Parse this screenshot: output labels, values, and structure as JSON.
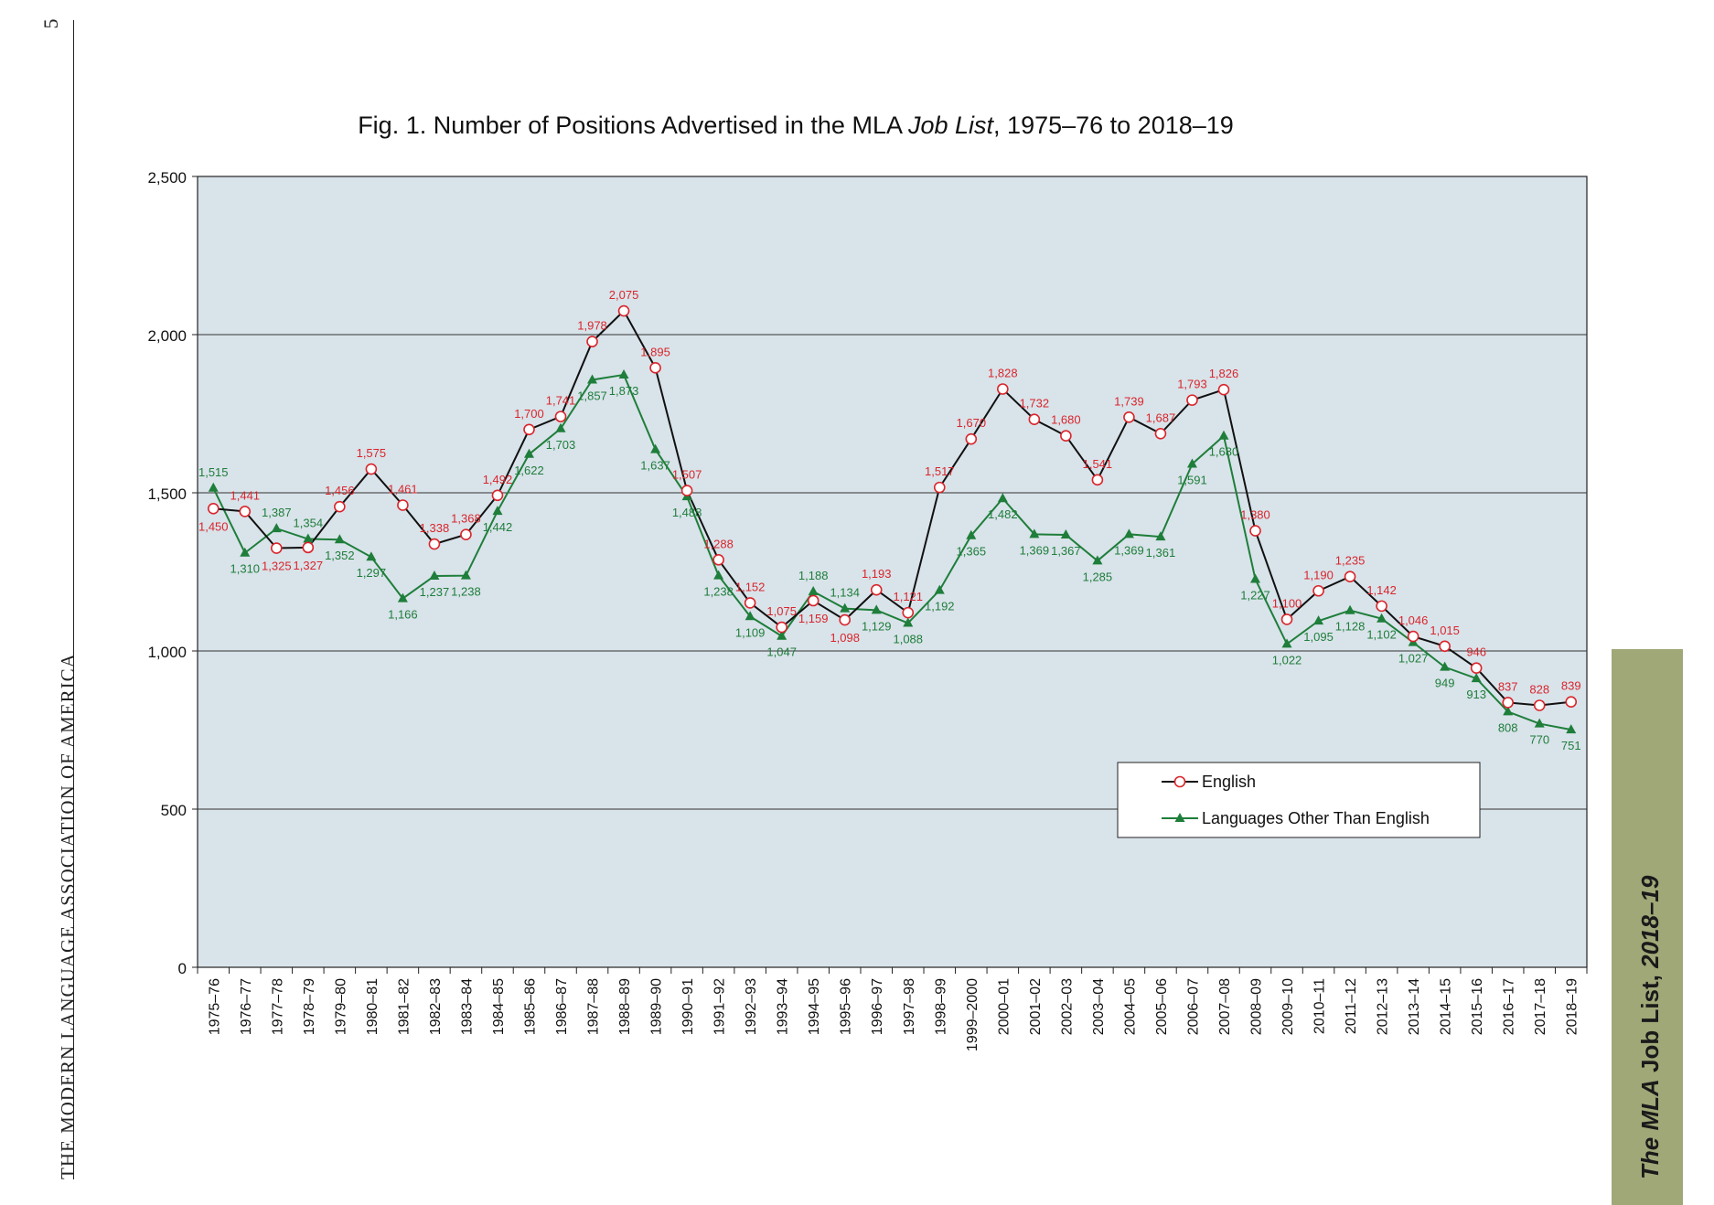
{
  "page": {
    "page_number": "5",
    "publisher": "THE MODERN LANGUAGE ASSOCIATION OF AMERICA",
    "side_tab": {
      "italic": "The MLA",
      "plain": " Job List, ",
      "italic2": "2018–19"
    },
    "colors": {
      "english": "#d9262c",
      "other": "#1e7e3a",
      "plot_bg": "#d9e3ea",
      "side_tab": "#a0a878"
    }
  },
  "chart_data": {
    "type": "line",
    "title": {
      "prefix": "Fig. 1. Number of Positions Advertised in the MLA ",
      "italic": "Job List",
      "suffix": ", 1975–76 to 2018–19"
    },
    "xlabel": "",
    "ylabel": "",
    "ylim": [
      0,
      2500
    ],
    "yticks": [
      "0",
      "500",
      "1,000",
      "1,500",
      "2,000",
      "2,500"
    ],
    "grid": true,
    "legend_position": "lower-right",
    "categories": [
      "1975–76",
      "1976–77",
      "1977–78",
      "1978–79",
      "1979–80",
      "1980–81",
      "1981–82",
      "1982–83",
      "1983–84",
      "1984–85",
      "1985–86",
      "1986–87",
      "1987–88",
      "1988–89",
      "1989–90",
      "1990–91",
      "1991–92",
      "1992–93",
      "1993–94",
      "1994–95",
      "1995–96",
      "1996–97",
      "1997–98",
      "1998–99",
      "1999–2000",
      "2000–01",
      "2001–02",
      "2002–03",
      "2003–04",
      "2004–05",
      "2005–06",
      "2006–07",
      "2007–08",
      "2008–09",
      "2009–10",
      "2010–11",
      "2011–12",
      "2012–13",
      "2013–14",
      "2014–15",
      "2015–16",
      "2016–17",
      "2017–18",
      "2018–19"
    ],
    "series": [
      {
        "name": "English",
        "marker": "circle",
        "values": [
          1450,
          1441,
          1325,
          1327,
          1456,
          1575,
          1461,
          1338,
          1368,
          1492,
          1700,
          1741,
          1978,
          2075,
          1895,
          1507,
          1288,
          1152,
          1075,
          1159,
          1098,
          1193,
          1121,
          1517,
          1670,
          1828,
          1732,
          1680,
          1541,
          1739,
          1687,
          1793,
          1826,
          1380,
          1100,
          1190,
          1235,
          1142,
          1046,
          1015,
          946,
          837,
          828,
          839
        ],
        "labels": [
          "1,450",
          "1,441",
          "1,325",
          "1,327",
          "1,456",
          "1,575",
          "1,461",
          "1,338",
          "1,368",
          "1,492",
          "1,700",
          "1,741",
          "1,978",
          "2,075",
          "1,895",
          "1,507",
          "1,288",
          "1,152",
          "1,075",
          "1,159",
          "1,098",
          "1,193",
          "1,121",
          "1,517",
          "1,670",
          "1,828",
          "1,732",
          "1,680",
          "1,541",
          "1,739",
          "1,687",
          "1,793",
          "1,826",
          "1,380",
          "1,100",
          "1,190",
          "1,235",
          "1,142",
          "1,046",
          "1,015",
          "946",
          "837",
          "828",
          "839"
        ]
      },
      {
        "name": "Languages Other Than English",
        "marker": "triangle",
        "values": [
          1515,
          1310,
          1387,
          1354,
          1352,
          1297,
          1166,
          1237,
          1238,
          1442,
          1622,
          1703,
          1857,
          1873,
          1637,
          1488,
          1238,
          1109,
          1047,
          1188,
          1134,
          1129,
          1088,
          1192,
          1365,
          1482,
          1369,
          1367,
          1285,
          1369,
          1361,
          1591,
          1680,
          1227,
          1022,
          1095,
          1128,
          1102,
          1027,
          949,
          913,
          808,
          770,
          751
        ],
        "labels": [
          "1,515",
          "1,310",
          "1,387",
          "1,354",
          "1,352",
          "1,297",
          "1,166",
          "1,237",
          "1,238",
          "1,442",
          "1,622",
          "1,703",
          "1,857",
          "1,873",
          "1,637",
          "1,488",
          "1,238",
          "1,109",
          "1,047",
          "1,188",
          "1,134",
          "1,129",
          "1,088",
          "1,192",
          "1,365",
          "1,482",
          "1,369",
          "1,367",
          "1,285",
          "1,369",
          "1,361",
          "1,591",
          "1,680",
          "1,227",
          "1,022",
          "1,095",
          "1,128",
          "1,102",
          "1,027",
          "949",
          "913",
          "808",
          "770",
          "751"
        ]
      }
    ]
  }
}
